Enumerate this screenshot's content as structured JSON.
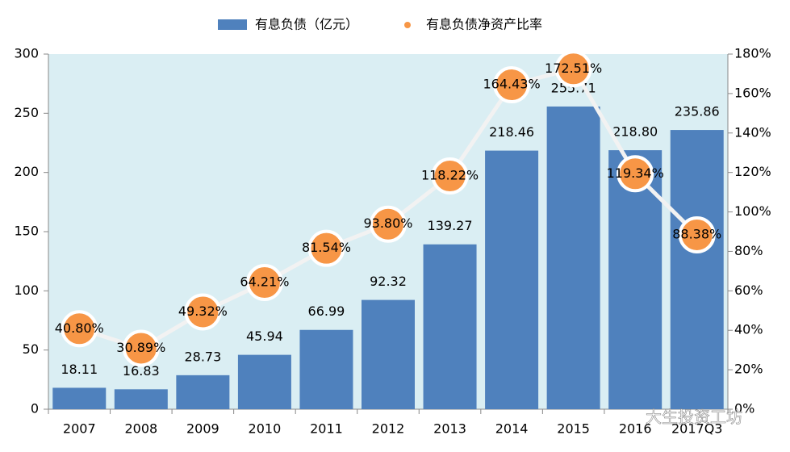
{
  "chart_data": {
    "type": "bar-line",
    "categories": [
      "2007",
      "2008",
      "2009",
      "2010",
      "2011",
      "2012",
      "2013",
      "2014",
      "2015",
      "2016",
      "2017Q3"
    ],
    "series": [
      {
        "name": "有息负债（亿元）",
        "color": "#4f81bd",
        "type": "bar",
        "values": [
          18.11,
          16.83,
          28.73,
          45.94,
          66.99,
          92.32,
          139.27,
          218.46,
          255.71,
          218.8,
          235.86
        ],
        "value_labels": [
          "18.11",
          "16.83",
          "28.73",
          "45.94",
          "66.99",
          "92.32",
          "139.27",
          "218.46",
          "255.71",
          "218.80",
          "235.86"
        ]
      },
      {
        "name": "有息负债净资产比率",
        "color": "#f79646",
        "type": "line",
        "axis": "y2",
        "values": [
          40.8,
          30.89,
          49.32,
          64.21,
          81.54,
          93.8,
          118.22,
          164.43,
          172.51,
          119.34,
          88.38
        ],
        "value_labels": [
          "40.80%",
          "30.89%",
          "49.32%",
          "64.21%",
          "81.54%",
          "93.80%",
          "118.22%",
          "164.43%",
          "172.51%",
          "119.34%",
          "88.38%"
        ]
      }
    ],
    "ylim": [
      0,
      300
    ],
    "yticks": [
      0,
      50,
      100,
      150,
      200,
      250,
      300
    ],
    "y2lim": [
      0,
      180
    ],
    "y2ticks": [
      {
        "value": 0,
        "label": "0%"
      },
      {
        "value": 20,
        "label": "20%"
      },
      {
        "value": 40,
        "label": "40%"
      },
      {
        "value": 60,
        "label": "60%"
      },
      {
        "value": 80,
        "label": "80%"
      },
      {
        "value": 100,
        "label": "100%"
      },
      {
        "value": 120,
        "label": "120%"
      },
      {
        "value": 140,
        "label": "140%"
      },
      {
        "value": 160,
        "label": "160%"
      },
      {
        "value": 180,
        "label": "180%"
      }
    ],
    "watermark": "大生投资工坊"
  }
}
